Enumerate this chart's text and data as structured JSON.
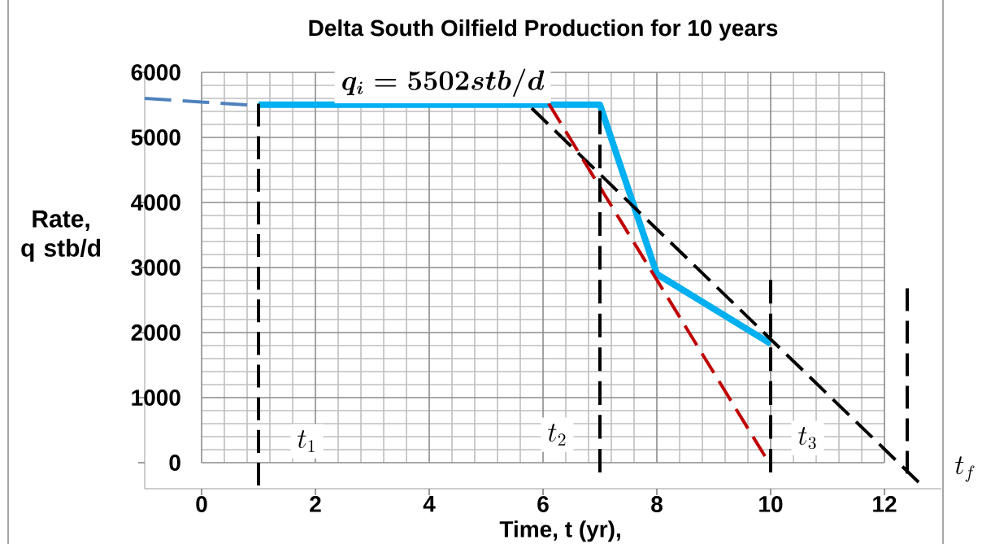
{
  "chart_data": {
    "type": "line",
    "title": "Delta South Oilfield Production for 10 years",
    "xlabel": "Time, t (yr),",
    "ylabel": "Rate, q stb/d",
    "xlim": [
      -1,
      13
    ],
    "ylim": [
      -400,
      6000
    ],
    "xticks": [
      0,
      2,
      4,
      6,
      8,
      10,
      12
    ],
    "yticks": [
      0,
      1000,
      2000,
      3000,
      4000,
      5000,
      6000
    ],
    "grid": true,
    "series": [
      {
        "color": "#00b0f0",
        "line_style": "solid",
        "x": [
          1,
          7,
          8,
          10
        ],
        "values": [
          5502,
          5502,
          2900,
          1830
        ]
      },
      {
        "color": "#4f81bd",
        "line_style": "dashed",
        "x": [
          -1,
          0.8
        ],
        "values": [
          5600,
          5500
        ]
      },
      {
        "color": "#000000",
        "line_style": "dashed",
        "x": [
          5.8,
          12.6
        ],
        "values": [
          5450,
          -300
        ]
      },
      {
        "color": "#c00000",
        "line_style": "dashed",
        "x": [
          6.1,
          9.9
        ],
        "values": [
          5520,
          100
        ]
      },
      {
        "color": "#000000",
        "line_style": "dashed",
        "x": [
          1,
          1
        ],
        "values": [
          5520,
          -350
        ]
      },
      {
        "color": "#000000",
        "line_style": "dashed",
        "x": [
          7,
          7
        ],
        "values": [
          5410,
          -150
        ]
      },
      {
        "color": "#000000",
        "line_style": "dashed",
        "x": [
          10,
          10
        ],
        "values": [
          2810,
          -150
        ]
      },
      {
        "color": "#000000",
        "line_style": "dashed",
        "x": [
          12.4,
          12.4
        ],
        "values": [
          2680,
          -170
        ]
      }
    ],
    "annotations": [
      "\\boldsymbol{q_i = 5502 stb/d}",
      {
        "text": "t_1",
        "x": 1.85,
        "y": 330
      },
      {
        "text": "t_2",
        "x": 6.25,
        "y": 430
      },
      {
        "text": "t_3",
        "x": 10.65,
        "y": 380
      },
      "t_f"
    ]
  }
}
